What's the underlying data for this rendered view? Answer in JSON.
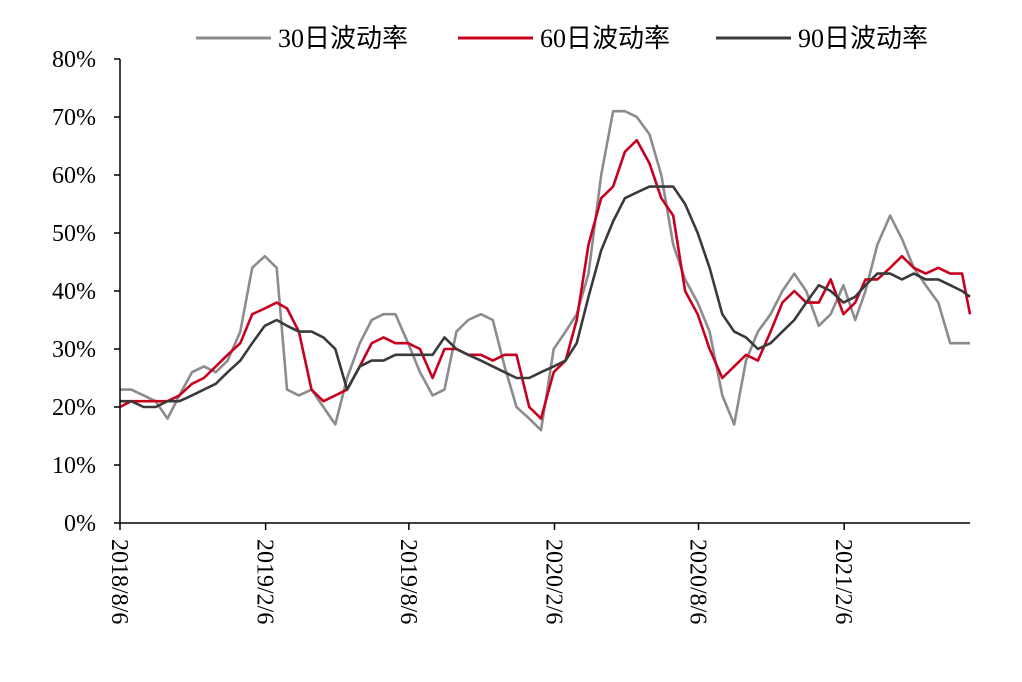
{
  "chart_data": {
    "type": "line",
    "title": "",
    "xlabel": "",
    "ylabel": "",
    "x_range": [
      "2018-08-06",
      "2021-07-15"
    ],
    "ylim": [
      0,
      80
    ],
    "y_unit": "%",
    "y_ticks": [
      0,
      10,
      20,
      30,
      40,
      50,
      60,
      70,
      80
    ],
    "y_tick_labels": [
      "0%",
      "10%",
      "20%",
      "30%",
      "40%",
      "50%",
      "60%",
      "70%",
      "80%"
    ],
    "x_ticks": [
      "2018-08-06",
      "2019-02-06",
      "2019-08-06",
      "2020-02-06",
      "2020-08-06",
      "2021-02-06"
    ],
    "x_tick_labels": [
      "2018/8/6",
      "2019/2/6",
      "2019/8/6",
      "2020/2/6",
      "2020/8/6",
      "2021/2/6"
    ],
    "grid": false,
    "legend_position": "top",
    "series": [
      {
        "name": "30日波动率",
        "color": "#8c8c8c",
        "x": [
          "2018-08-06",
          "2018-08-20",
          "2018-09-05",
          "2018-09-20",
          "2018-10-05",
          "2018-10-20",
          "2018-11-05",
          "2018-11-20",
          "2018-12-05",
          "2018-12-20",
          "2019-01-05",
          "2019-01-20",
          "2019-02-05",
          "2019-02-20",
          "2019-03-05",
          "2019-03-20",
          "2019-04-05",
          "2019-04-20",
          "2019-05-05",
          "2019-05-20",
          "2019-06-05",
          "2019-06-20",
          "2019-07-05",
          "2019-07-20",
          "2019-08-05",
          "2019-08-20",
          "2019-09-05",
          "2019-09-20",
          "2019-10-05",
          "2019-10-20",
          "2019-11-05",
          "2019-11-20",
          "2019-12-05",
          "2019-12-20",
          "2020-01-05",
          "2020-01-20",
          "2020-02-05",
          "2020-02-20",
          "2020-03-05",
          "2020-03-20",
          "2020-04-05",
          "2020-04-20",
          "2020-05-05",
          "2020-05-20",
          "2020-06-05",
          "2020-06-20",
          "2020-07-05",
          "2020-07-20",
          "2020-08-05",
          "2020-08-20",
          "2020-09-05",
          "2020-09-20",
          "2020-10-05",
          "2020-10-20",
          "2020-11-05",
          "2020-11-20",
          "2020-12-05",
          "2020-12-20",
          "2021-01-05",
          "2021-01-20",
          "2021-02-05",
          "2021-02-20",
          "2021-03-05",
          "2021-03-20",
          "2021-04-05",
          "2021-04-20",
          "2021-05-05",
          "2021-05-20",
          "2021-06-05",
          "2021-06-20",
          "2021-07-05",
          "2021-07-15"
        ],
        "values": [
          23,
          23,
          22,
          21,
          18,
          22,
          26,
          27,
          26,
          28,
          33,
          44,
          46,
          44,
          23,
          22,
          23,
          20,
          17,
          25,
          31,
          35,
          36,
          36,
          31,
          26,
          22,
          23,
          33,
          35,
          36,
          35,
          27,
          20,
          18,
          16,
          30,
          33,
          36,
          43,
          60,
          71,
          71,
          70,
          67,
          60,
          48,
          42,
          38,
          33,
          22,
          17,
          28,
          33,
          36,
          40,
          43,
          40,
          34,
          36,
          41,
          35,
          40,
          48,
          53,
          49,
          44,
          41,
          38,
          31,
          31,
          31
        ]
      },
      {
        "name": "60日波动率",
        "color": "#c8001e",
        "x": [
          "2018-08-06",
          "2018-08-20",
          "2018-09-05",
          "2018-09-20",
          "2018-10-05",
          "2018-10-20",
          "2018-11-05",
          "2018-11-20",
          "2018-12-05",
          "2018-12-20",
          "2019-01-05",
          "2019-01-20",
          "2019-02-05",
          "2019-02-20",
          "2019-03-05",
          "2019-03-20",
          "2019-04-05",
          "2019-04-20",
          "2019-05-05",
          "2019-05-20",
          "2019-06-05",
          "2019-06-20",
          "2019-07-05",
          "2019-07-20",
          "2019-08-05",
          "2019-08-20",
          "2019-09-05",
          "2019-09-20",
          "2019-10-05",
          "2019-10-20",
          "2019-11-05",
          "2019-11-20",
          "2019-12-05",
          "2019-12-20",
          "2020-01-05",
          "2020-01-20",
          "2020-02-05",
          "2020-02-20",
          "2020-03-05",
          "2020-03-20",
          "2020-04-05",
          "2020-04-20",
          "2020-05-05",
          "2020-05-20",
          "2020-06-05",
          "2020-06-20",
          "2020-07-05",
          "2020-07-20",
          "2020-08-05",
          "2020-08-20",
          "2020-09-05",
          "2020-09-20",
          "2020-10-05",
          "2020-10-20",
          "2020-11-05",
          "2020-11-20",
          "2020-12-05",
          "2020-12-20",
          "2021-01-05",
          "2021-01-20",
          "2021-02-05",
          "2021-02-20",
          "2021-03-05",
          "2021-03-20",
          "2021-04-05",
          "2021-04-20",
          "2021-05-05",
          "2021-05-20",
          "2021-06-05",
          "2021-06-20",
          "2021-07-05",
          "2021-07-15"
        ],
        "values": [
          20,
          21,
          21,
          21,
          21,
          22,
          24,
          25,
          27,
          29,
          31,
          36,
          37,
          38,
          37,
          33,
          23,
          21,
          22,
          23,
          27,
          31,
          32,
          31,
          31,
          30,
          25,
          30,
          30,
          29,
          29,
          28,
          29,
          29,
          20,
          18,
          26,
          28,
          35,
          48,
          56,
          58,
          64,
          66,
          62,
          56,
          53,
          40,
          36,
          30,
          25,
          27,
          29,
          28,
          33,
          38,
          40,
          38,
          38,
          42,
          36,
          38,
          42,
          42,
          44,
          46,
          44,
          43,
          44,
          43,
          43,
          36
        ]
      },
      {
        "name": "90日波动率",
        "color": "#3a3a3a",
        "x": [
          "2018-08-06",
          "2018-08-20",
          "2018-09-05",
          "2018-09-20",
          "2018-10-05",
          "2018-10-20",
          "2018-11-05",
          "2018-11-20",
          "2018-12-05",
          "2018-12-20",
          "2019-01-05",
          "2019-01-20",
          "2019-02-05",
          "2019-02-20",
          "2019-03-05",
          "2019-03-20",
          "2019-04-05",
          "2019-04-20",
          "2019-05-05",
          "2019-05-20",
          "2019-06-05",
          "2019-06-20",
          "2019-07-05",
          "2019-07-20",
          "2019-08-05",
          "2019-08-20",
          "2019-09-05",
          "2019-09-20",
          "2019-10-05",
          "2019-10-20",
          "2019-11-05",
          "2019-11-20",
          "2019-12-05",
          "2019-12-20",
          "2020-01-05",
          "2020-01-20",
          "2020-02-05",
          "2020-02-20",
          "2020-03-05",
          "2020-03-20",
          "2020-04-05",
          "2020-04-20",
          "2020-05-05",
          "2020-05-20",
          "2020-06-05",
          "2020-06-20",
          "2020-07-05",
          "2020-07-20",
          "2020-08-05",
          "2020-08-20",
          "2020-09-05",
          "2020-09-20",
          "2020-10-05",
          "2020-10-20",
          "2020-11-05",
          "2020-11-20",
          "2020-12-05",
          "2020-12-20",
          "2021-01-05",
          "2021-01-20",
          "2021-02-05",
          "2021-02-20",
          "2021-03-05",
          "2021-03-20",
          "2021-04-05",
          "2021-04-20",
          "2021-05-05",
          "2021-05-20",
          "2021-06-05",
          "2021-06-20",
          "2021-07-05",
          "2021-07-15"
        ],
        "values": [
          21,
          21,
          20,
          20,
          21,
          21,
          22,
          23,
          24,
          26,
          28,
          31,
          34,
          35,
          34,
          33,
          33,
          32,
          30,
          23,
          27,
          28,
          28,
          29,
          29,
          29,
          29,
          32,
          30,
          29,
          28,
          27,
          26,
          25,
          25,
          26,
          27,
          28,
          31,
          39,
          47,
          52,
          56,
          57,
          58,
          58,
          58,
          55,
          50,
          44,
          36,
          33,
          32,
          30,
          31,
          33,
          35,
          38,
          41,
          40,
          38,
          39,
          41,
          43,
          43,
          42,
          43,
          42,
          42,
          41,
          40,
          39
        ]
      }
    ]
  }
}
